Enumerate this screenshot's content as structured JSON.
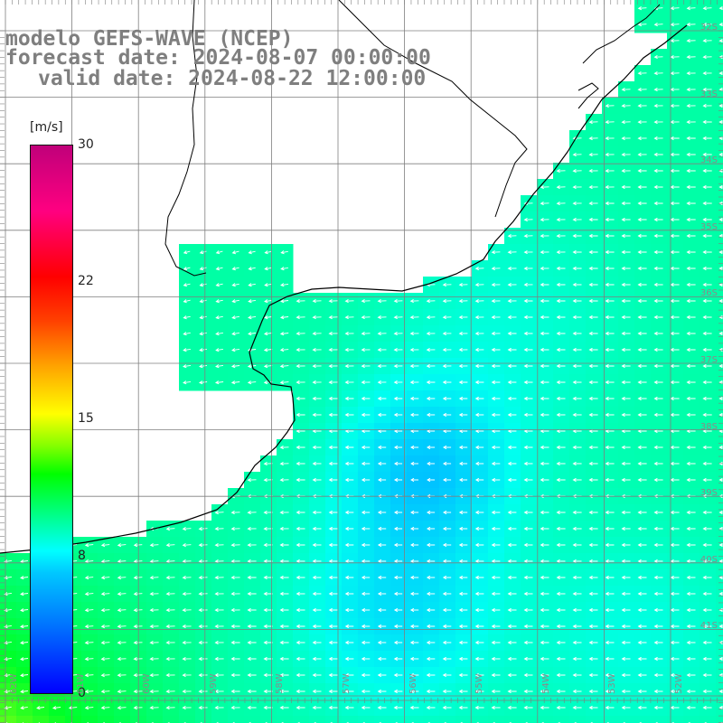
{
  "title": {
    "line1": "modelo GEFS-WAVE (NCEP)",
    "line2": "forecast date: 2024-08-07 00:00:00",
    "line3": "valid date: 2024-08-22 12:00:00"
  },
  "colorbar": {
    "unit": "[m/s]",
    "ticks": [
      "30",
      "22",
      "15",
      "8",
      "0"
    ],
    "range": [
      0,
      30
    ]
  },
  "lat_labels": [
    "32S",
    "33S",
    "34S",
    "35S",
    "36S",
    "37S",
    "38S",
    "39S",
    "40S",
    "41S"
  ],
  "lon_labels": [
    "62W",
    "61W",
    "60W",
    "59W",
    "58W",
    "57W",
    "56W",
    "55W",
    "54W",
    "53W",
    "52W"
  ],
  "colors": {
    "grid": "#7f7f7f",
    "land": "#ffffff",
    "coast": "#000000",
    "arrow": "#ffffff",
    "title": "#7f7f7f"
  },
  "field": {
    "variable": "wind speed",
    "direction": "mostly westward offshore, southwestward along coast"
  }
}
